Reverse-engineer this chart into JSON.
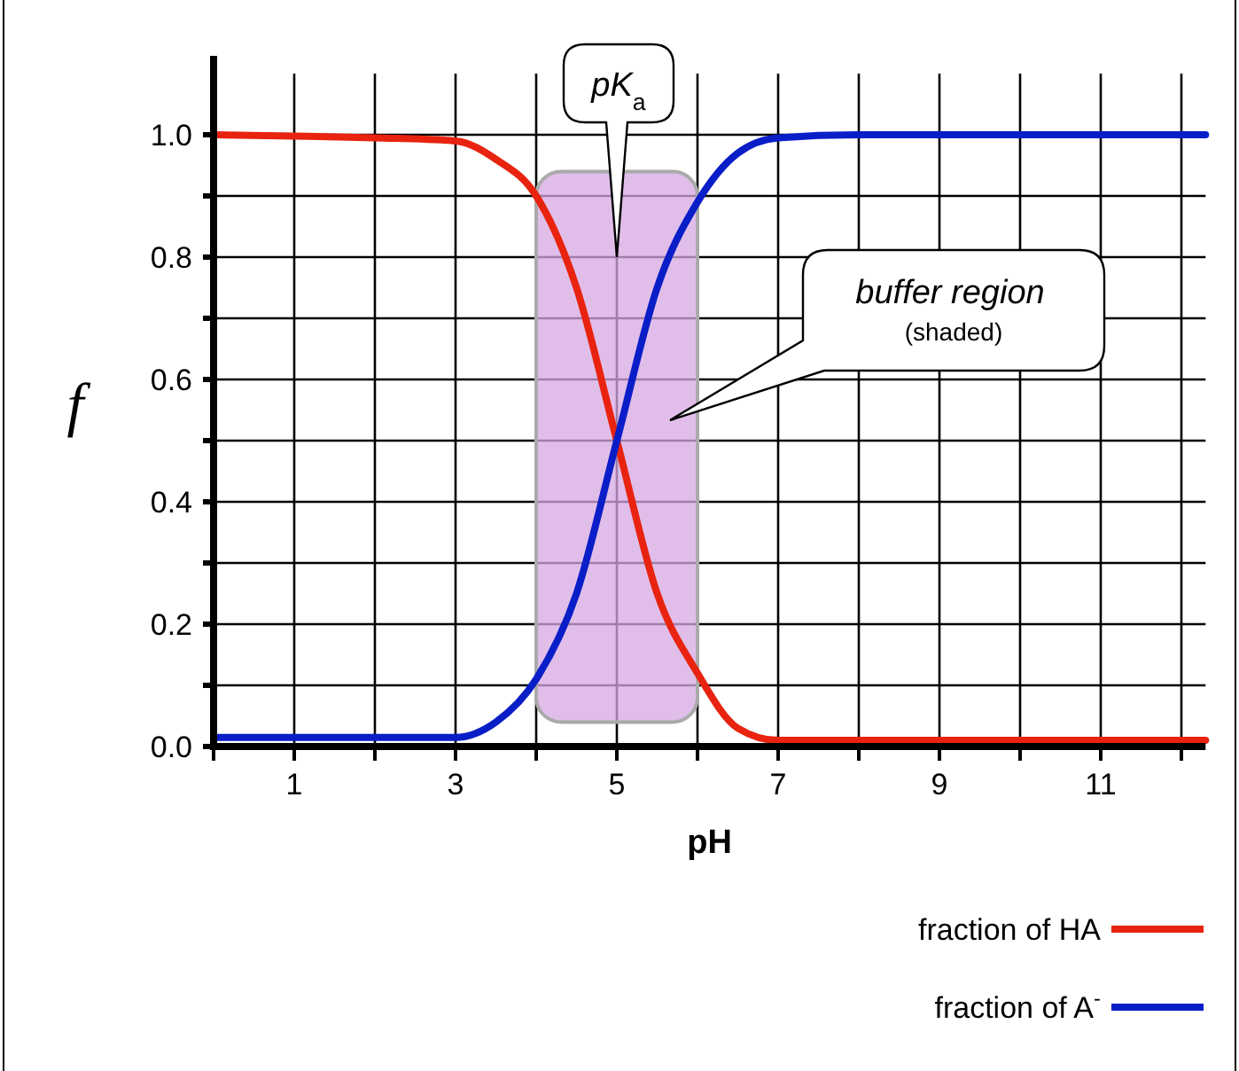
{
  "chart_data": {
    "type": "line",
    "xlabel": "pH",
    "ylabel": "f",
    "xlim": [
      0,
      12.3
    ],
    "ylim": [
      0,
      1.1
    ],
    "xticks": [
      {
        "value": 0,
        "label": null
      },
      1,
      {
        "value": 2,
        "label": null
      },
      3,
      {
        "value": 4,
        "label": null
      },
      5,
      {
        "value": 6,
        "label": null
      },
      7,
      {
        "value": 8,
        "label": null
      },
      9,
      {
        "value": 10,
        "label": null
      },
      11,
      {
        "value": 12,
        "label": null
      }
    ],
    "yticks": [
      {
        "value": 0,
        "label": "0.0"
      },
      {
        "value": 0.1,
        "label": null
      },
      0.2,
      {
        "value": 0.3,
        "label": null
      },
      0.4,
      {
        "value": 0.5,
        "label": null
      },
      0.6,
      {
        "value": 0.7,
        "label": null
      },
      0.8,
      {
        "value": 0.9,
        "label": null
      },
      {
        "value": 1,
        "label": "1.0"
      }
    ],
    "grid": true,
    "legend": "bottom right",
    "marker": "none",
    "line_style": "solid",
    "series": [
      {
        "name": "fraction of HA",
        "color": "#e8230f",
        "x": [
          0,
          1,
          2,
          3,
          3.5,
          4,
          4.5,
          5,
          5.5,
          6,
          6.5,
          7,
          8,
          10,
          12.3
        ],
        "values": [
          1.0,
          0.998,
          0.995,
          0.99,
          0.96,
          0.9,
          0.75,
          0.5,
          0.25,
          0.12,
          0.03,
          0.01,
          0.01,
          0.01,
          0.01
        ]
      },
      {
        "name": "fraction of A$^{-}$",
        "color": "#0a1ec8",
        "x": [
          0,
          1,
          2,
          3,
          3.5,
          4,
          4.5,
          5,
          5.5,
          6,
          6.5,
          7,
          8,
          10,
          12.3
        ],
        "values": [
          0.015,
          0.015,
          0.015,
          0.015,
          0.04,
          0.11,
          0.25,
          0.5,
          0.75,
          0.89,
          0.97,
          0.995,
          1.0,
          1.0,
          1.0
        ]
      }
    ],
    "bands": [
      {
        "axis": "x",
        "from": 4,
        "to": 6,
        "color": "#d7a8e3"
      }
    ],
    "annotations": [
      "pK$_{a}$",
      "buffer region\n(shaded)"
    ]
  }
}
